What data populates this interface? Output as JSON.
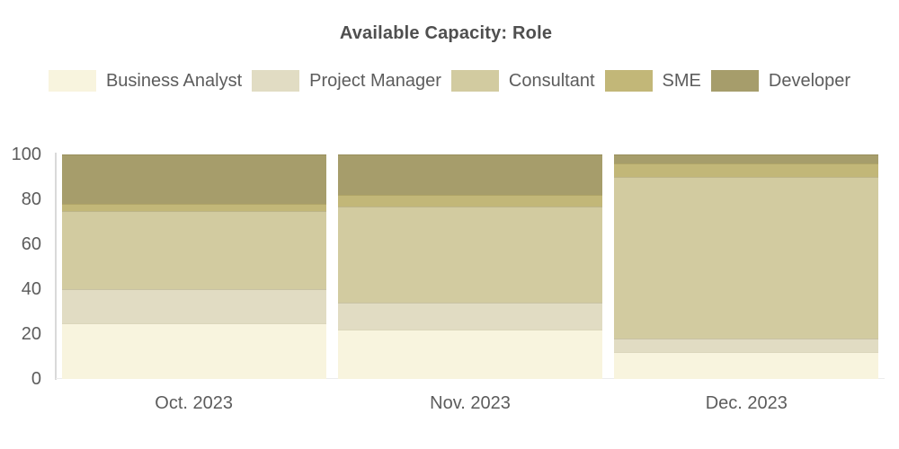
{
  "title": "Available Capacity: Role",
  "chart_data": {
    "type": "bar",
    "stacked": true,
    "percent_stacked": true,
    "title": "Available Capacity: Role",
    "xlabel": "",
    "ylabel": "",
    "ylim": [
      0,
      100
    ],
    "yticks": [
      0,
      20,
      40,
      60,
      80,
      100
    ],
    "grid": false,
    "legend_position": "top",
    "categories": [
      "Oct. 2023",
      "Nov. 2023",
      "Dec. 2023"
    ],
    "series": [
      {
        "name": "Business Analyst",
        "color": "#f8f4de",
        "values": [
          25,
          22,
          12
        ]
      },
      {
        "name": "Project Manager",
        "color": "#e1dcc3",
        "values": [
          15,
          12,
          6
        ]
      },
      {
        "name": "Consultant",
        "color": "#d2cba0",
        "values": [
          35,
          43,
          72
        ]
      },
      {
        "name": "SME",
        "color": "#c2b778",
        "values": [
          3,
          5,
          6
        ]
      },
      {
        "name": "Developer",
        "color": "#a69d6b",
        "values": [
          22,
          18,
          4
        ]
      }
    ],
    "colors": {
      "title_text": "#4f4f4f",
      "axis_text": "#5c5c5c",
      "legend_text": "#5c5c5c",
      "y_axis_line": "#d9d9d9",
      "x_axis_line": "#ececec",
      "background": "#ffffff"
    }
  }
}
